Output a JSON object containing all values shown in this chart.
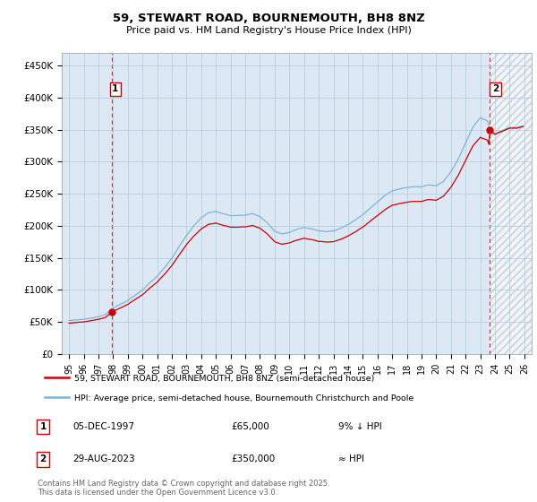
{
  "title": "59, STEWART ROAD, BOURNEMOUTH, BH8 8NZ",
  "subtitle": "Price paid vs. HM Land Registry's House Price Index (HPI)",
  "ylim": [
    0,
    470000
  ],
  "yticks": [
    0,
    50000,
    100000,
    150000,
    200000,
    250000,
    300000,
    350000,
    400000,
    450000
  ],
  "ytick_labels": [
    "£0",
    "£50K",
    "£100K",
    "£150K",
    "£200K",
    "£250K",
    "£300K",
    "£350K",
    "£400K",
    "£450K"
  ],
  "hpi_color": "#7db4d8",
  "price_color": "#cc0000",
  "chart_bg_color": "#dce9f5",
  "background_color": "#ffffff",
  "grid_color": "#b0c8dc",
  "legend_label_price": "59, STEWART ROAD, BOURNEMOUTH, BH8 8NZ (semi-detached house)",
  "legend_label_hpi": "HPI: Average price, semi-detached house, Bournemouth Christchurch and Poole",
  "annotation1_label": "1",
  "annotation1_date": "05-DEC-1997",
  "annotation1_price": "£65,000",
  "annotation1_note": "9% ↓ HPI",
  "annotation2_label": "2",
  "annotation2_date": "29-AUG-2023",
  "annotation2_price": "£350,000",
  "annotation2_note": "≈ HPI",
  "footnote": "Contains HM Land Registry data © Crown copyright and database right 2025.\nThis data is licensed under the Open Government Licence v3.0.",
  "sale1_year": 1997.92,
  "sale1_value": 65000,
  "sale2_year": 2023.66,
  "sale2_value": 350000,
  "xlim_start": 1994.5,
  "xlim_end": 2026.5
}
